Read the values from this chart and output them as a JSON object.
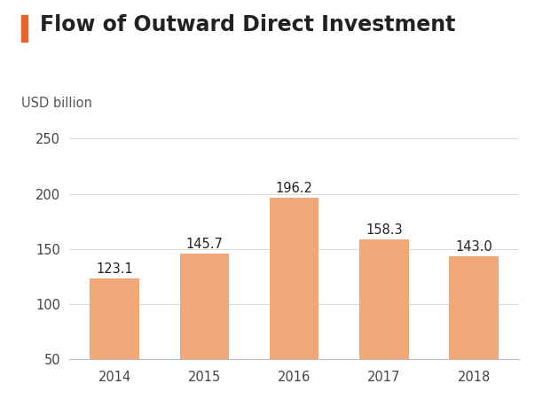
{
  "title": "Flow of Outward Direct Investment",
  "ylabel": "USD billion",
  "categories": [
    "2014",
    "2015",
    "2016",
    "2017",
    "2018"
  ],
  "values": [
    123.1,
    145.7,
    196.2,
    158.3,
    143.0
  ],
  "bar_color": "#F0A878",
  "title_color": "#222222",
  "ylabel_color": "#555555",
  "accent_color": "#E8622A",
  "ylim": [
    50,
    260
  ],
  "yticks": [
    50,
    100,
    150,
    200,
    250
  ],
  "title_fontsize": 17,
  "label_fontsize": 10.5,
  "tick_fontsize": 10.5,
  "value_fontsize": 10.5,
  "background_color": "#ffffff",
  "grid_color": "#dddddd"
}
